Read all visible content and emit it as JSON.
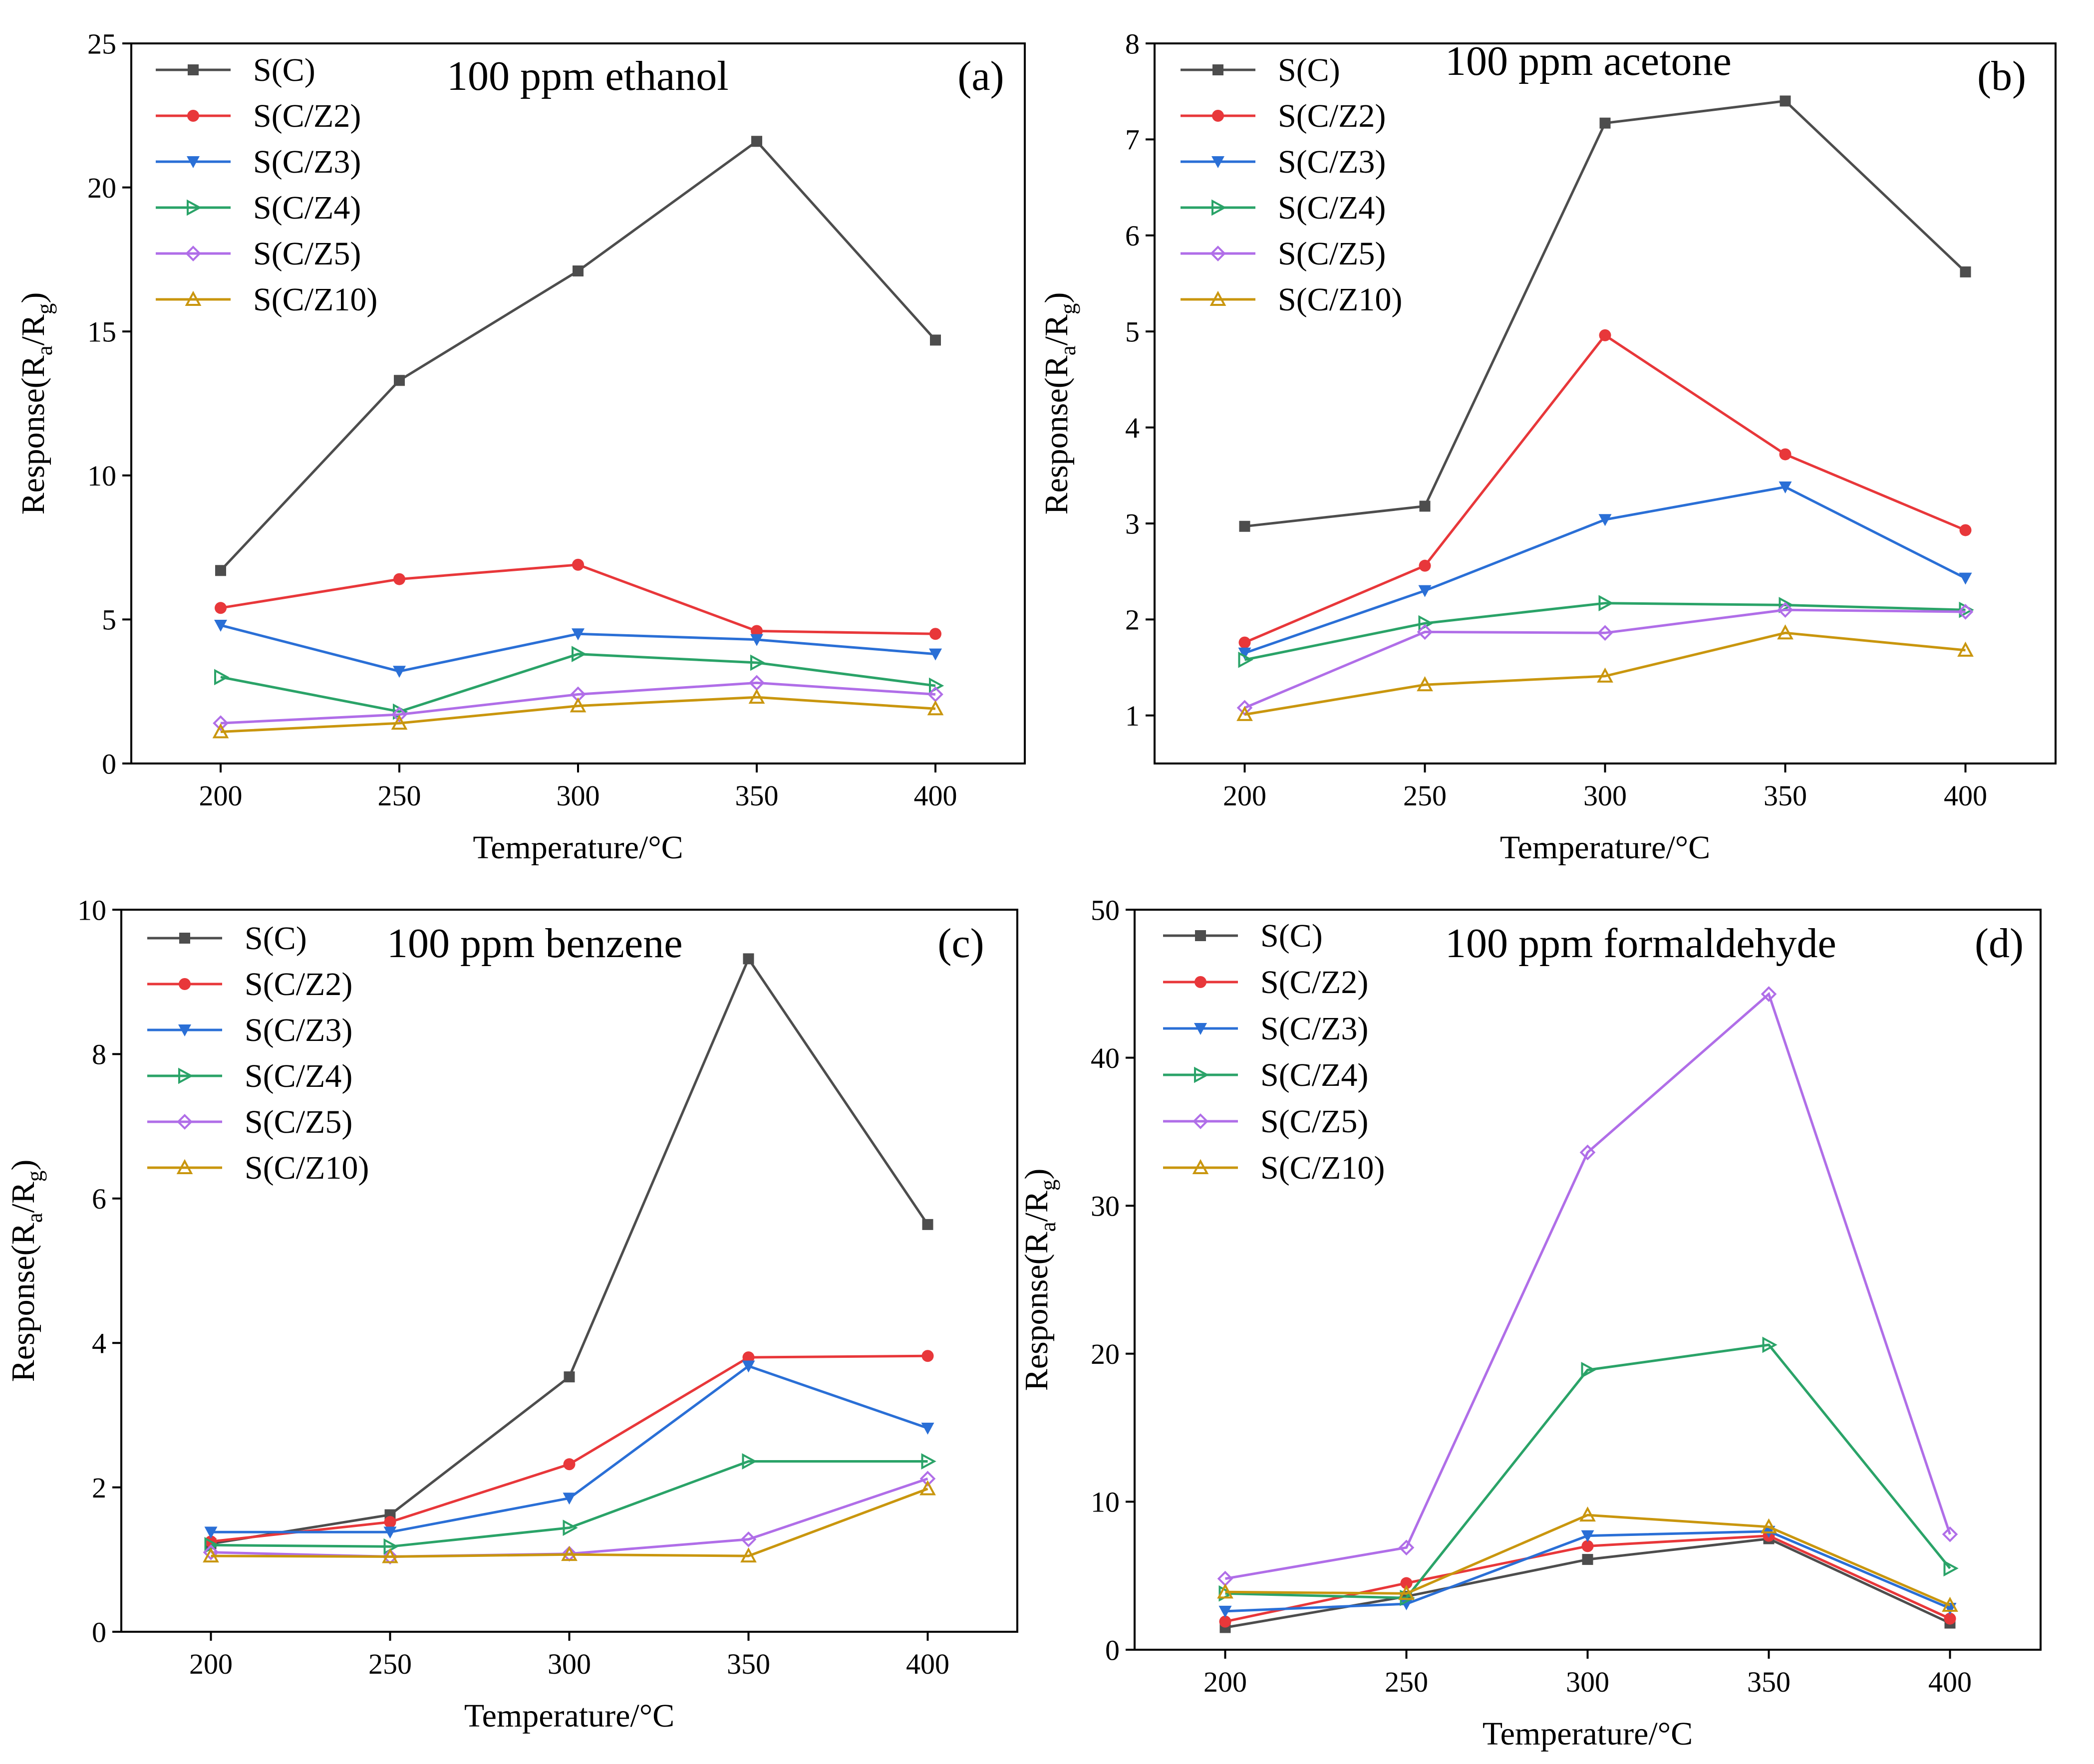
{
  "chart_data": [
    {
      "type": "line",
      "panel_label": "(a)",
      "title": "100 ppm ethanol",
      "xlabel": "Temperature/°C",
      "ylabel_main": "Response(R",
      "ylabel_sub_a": "a",
      "ylabel_mid": "/R",
      "ylabel_sub_g": "g",
      "ylabel_end": ")",
      "x": [
        200,
        250,
        300,
        350,
        400
      ],
      "xticks": [
        "200",
        "250",
        "300",
        "350",
        "400"
      ],
      "xlim": [
        175,
        425
      ],
      "ylim": [
        0,
        25
      ],
      "yticks": [
        0,
        5,
        10,
        15,
        20,
        25
      ],
      "legend_position": "top-left",
      "series": [
        {
          "name": "S(C)",
          "color": "#4d4d4d",
          "marker": "square",
          "values": [
            6.7,
            13.3,
            17.1,
            21.6,
            14.7
          ]
        },
        {
          "name": "S(C/Z2)",
          "color": "#e8373a",
          "marker": "circle",
          "values": [
            5.4,
            6.4,
            6.9,
            4.6,
            4.5
          ]
        },
        {
          "name": "S(C/Z3)",
          "color": "#2a6fd6",
          "marker": "triangle-down",
          "values": [
            4.8,
            3.2,
            4.5,
            4.3,
            3.8
          ]
        },
        {
          "name": "S(C/Z4)",
          "color": "#2aa368",
          "marker": "triangle-right",
          "values": [
            3.0,
            1.8,
            3.8,
            3.5,
            2.7
          ]
        },
        {
          "name": "S(C/Z5)",
          "color": "#b06ee8",
          "marker": "diamond",
          "values": [
            1.4,
            1.7,
            2.4,
            2.8,
            2.4
          ]
        },
        {
          "name": "S(C/Z10)",
          "color": "#c9960e",
          "marker": "triangle-up",
          "values": [
            1.1,
            1.4,
            2.0,
            2.3,
            1.9
          ]
        }
      ]
    },
    {
      "type": "line",
      "panel_label": "(b)",
      "title": "100 ppm acetone",
      "xlabel": "Temperature/°C",
      "ylabel_main": "Response(R",
      "ylabel_sub_a": "a",
      "ylabel_mid": "/R",
      "ylabel_sub_g": "g",
      "ylabel_end": ")",
      "x": [
        200,
        250,
        300,
        350,
        400
      ],
      "xticks": [
        "200",
        "250",
        "300",
        "350",
        "400"
      ],
      "xlim": [
        175,
        425
      ],
      "ylim": [
        0.5,
        8
      ],
      "yticks": [
        1,
        2,
        3,
        4,
        5,
        6,
        7,
        8
      ],
      "legend_position": "top-left",
      "series": [
        {
          "name": "S(C)",
          "color": "#4d4d4d",
          "marker": "square",
          "values": [
            2.97,
            3.18,
            7.17,
            7.4,
            5.62
          ]
        },
        {
          "name": "S(C/Z2)",
          "color": "#e8373a",
          "marker": "circle",
          "values": [
            1.76,
            2.56,
            4.96,
            3.72,
            2.93
          ]
        },
        {
          "name": "S(C/Z3)",
          "color": "#2a6fd6",
          "marker": "triangle-down",
          "values": [
            1.65,
            2.3,
            3.04,
            3.38,
            2.43
          ]
        },
        {
          "name": "S(C/Z4)",
          "color": "#2aa368",
          "marker": "triangle-right",
          "values": [
            1.58,
            1.96,
            2.17,
            2.15,
            2.1
          ]
        },
        {
          "name": "S(C/Z5)",
          "color": "#b06ee8",
          "marker": "diamond",
          "values": [
            1.08,
            1.87,
            1.86,
            2.1,
            2.08
          ]
        },
        {
          "name": "S(C/Z10)",
          "color": "#c9960e",
          "marker": "triangle-up",
          "values": [
            1.01,
            1.32,
            1.41,
            1.86,
            1.68
          ]
        }
      ]
    },
    {
      "type": "line",
      "panel_label": "(c)",
      "title": "100 ppm benzene",
      "xlabel": "Temperature/°C",
      "ylabel_main": "Response(R",
      "ylabel_sub_a": "a",
      "ylabel_mid": "/R",
      "ylabel_sub_g": "g",
      "ylabel_end": ")",
      "x": [
        200,
        250,
        300,
        350,
        400
      ],
      "xticks": [
        "200",
        "250",
        "300",
        "350",
        "400"
      ],
      "xlim": [
        175,
        425
      ],
      "ylim": [
        0,
        10
      ],
      "yticks": [
        0,
        2,
        4,
        6,
        8,
        10
      ],
      "legend_position": "top-left",
      "series": [
        {
          "name": "S(C)",
          "color": "#4d4d4d",
          "marker": "square",
          "values": [
            1.22,
            1.62,
            3.53,
            9.32,
            5.64
          ]
        },
        {
          "name": "S(C/Z2)",
          "color": "#e8373a",
          "marker": "circle",
          "values": [
            1.25,
            1.52,
            2.32,
            3.8,
            3.82
          ]
        },
        {
          "name": "S(C/Z3)",
          "color": "#2a6fd6",
          "marker": "triangle-down",
          "values": [
            1.38,
            1.38,
            1.85,
            3.68,
            2.82
          ]
        },
        {
          "name": "S(C/Z4)",
          "color": "#2aa368",
          "marker": "triangle-right",
          "values": [
            1.2,
            1.18,
            1.44,
            2.36,
            2.36
          ]
        },
        {
          "name": "S(C/Z5)",
          "color": "#b06ee8",
          "marker": "diamond",
          "values": [
            1.1,
            1.04,
            1.08,
            1.28,
            2.12
          ]
        },
        {
          "name": "S(C/Z10)",
          "color": "#c9960e",
          "marker": "triangle-up",
          "values": [
            1.05,
            1.04,
            1.07,
            1.05,
            1.98
          ]
        }
      ]
    },
    {
      "type": "line",
      "panel_label": "(d)",
      "title": "100 ppm formaldehyde",
      "xlabel": "Temperature/°C",
      "ylabel_main": "Response(R",
      "ylabel_sub_a": "a",
      "ylabel_mid": "/R",
      "ylabel_sub_g": "g",
      "ylabel_end": ")",
      "x": [
        200,
        250,
        300,
        350,
        400
      ],
      "xticks": [
        "200",
        "250",
        "300",
        "350",
        "400"
      ],
      "xlim": [
        175,
        425
      ],
      "ylim": [
        0,
        50
      ],
      "yticks": [
        0,
        10,
        20,
        30,
        40,
        50
      ],
      "legend_position": "top-left",
      "series": [
        {
          "name": "S(C)",
          "color": "#4d4d4d",
          "marker": "square",
          "values": [
            1.5,
            3.6,
            6.1,
            7.5,
            1.8
          ]
        },
        {
          "name": "S(C/Z2)",
          "color": "#e8373a",
          "marker": "circle",
          "values": [
            1.9,
            4.5,
            7.0,
            7.7,
            2.1
          ]
        },
        {
          "name": "S(C/Z3)",
          "color": "#2a6fd6",
          "marker": "triangle-down",
          "values": [
            2.6,
            3.1,
            7.7,
            8.0,
            2.8
          ]
        },
        {
          "name": "S(C/Z4)",
          "color": "#2aa368",
          "marker": "triangle-right",
          "values": [
            3.8,
            3.5,
            18.9,
            20.6,
            5.5
          ]
        },
        {
          "name": "S(C/Z5)",
          "color": "#b06ee8",
          "marker": "diamond",
          "values": [
            4.8,
            6.9,
            33.6,
            44.3,
            7.8
          ]
        },
        {
          "name": "S(C/Z10)",
          "color": "#c9960e",
          "marker": "triangle-up",
          "values": [
            3.9,
            3.8,
            9.1,
            8.3,
            3.0
          ]
        }
      ]
    }
  ]
}
